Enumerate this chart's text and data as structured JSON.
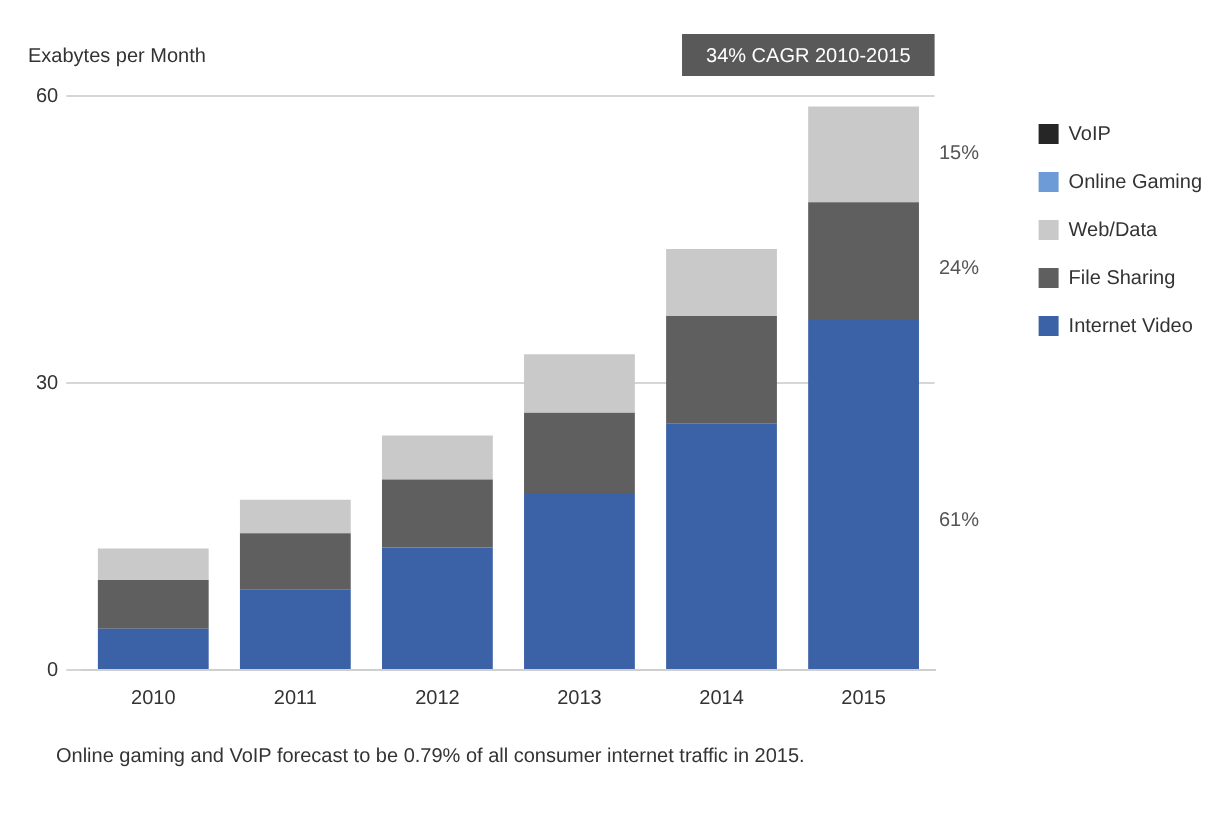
{
  "chart_data": {
    "type": "bar",
    "stacked": true,
    "ylabel": "Exabytes per Month",
    "categories": [
      "2010",
      "2011",
      "2012",
      "2013",
      "2014",
      "2015"
    ],
    "series": [
      {
        "name": "Internet Video",
        "color": "#3b62a6",
        "values": [
          4.3,
          8.4,
          12.8,
          18.5,
          25.8,
          36.7
        ]
      },
      {
        "name": "File Sharing",
        "color": "#5f5f5f",
        "values": [
          5.1,
          5.9,
          7.1,
          8.4,
          11.2,
          12.2
        ]
      },
      {
        "name": "Web/Data",
        "color": "#c9c9c9",
        "values": [
          3.3,
          3.5,
          4.6,
          6.1,
          7.0,
          10.0
        ]
      },
      {
        "name": "Online Gaming",
        "color": "#6d9bd8",
        "values": [
          0,
          0,
          0,
          0,
          0,
          0
        ]
      },
      {
        "name": "VoIP",
        "color": "#262626",
        "values": [
          0,
          0,
          0,
          0,
          0,
          0
        ]
      }
    ],
    "ylim": [
      0,
      60
    ],
    "yticks": [
      0,
      30,
      60
    ],
    "grid": "y",
    "legend": "right",
    "annotations": [
      {
        "text": "34% CAGR 2010-2015"
      },
      "15%",
      "24%",
      "61%",
      {
        "text": "Online gaming and VoIP forecast to be 0.79% of all consumer internet traffic in 2015."
      }
    ]
  }
}
